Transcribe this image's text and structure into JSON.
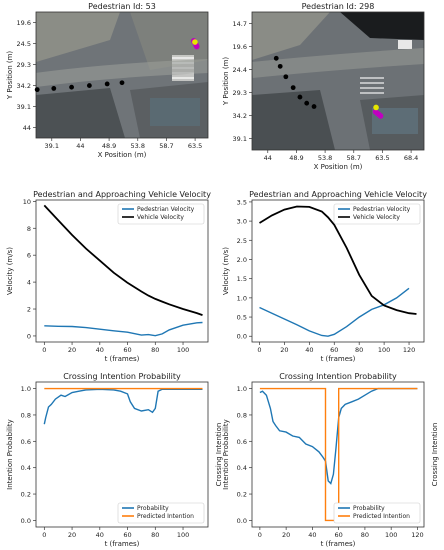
{
  "chart_data": [
    {
      "type": "scatter",
      "title": "Pedestrian Id: 53",
      "xlabel": "X Position (m)",
      "ylabel": "Y Position (m)",
      "xticks": [
        "39.1",
        "44",
        "48.9",
        "53.8",
        "58.7",
        "63.5"
      ],
      "yticks": [
        "19.6",
        "24.5",
        "29.3",
        "34.2",
        "39.1",
        "44"
      ],
      "xlim": [
        36.0,
        65.0
      ],
      "ylim": [
        46.5,
        15.5
      ],
      "background": "aerial-image",
      "series": [
        {
          "role": "vehicle",
          "color": "#000000",
          "x": [
            36.2,
            39.0,
            42.0,
            45.0,
            48.0,
            50.5
          ],
          "y": [
            34.6,
            34.3,
            34.0,
            33.6,
            33.2,
            32.9
          ]
        },
        {
          "role": "pedestrian",
          "color": "#c000c0",
          "x": [
            62.6,
            62.7,
            62.9,
            63.0,
            63.1
          ],
          "y": [
            22.6,
            22.9,
            23.3,
            23.7,
            24.0
          ]
        },
        {
          "role": "pedestrian-current",
          "color": "#e6e600",
          "x": [
            62.8
          ],
          "y": [
            22.9
          ]
        }
      ]
    },
    {
      "type": "scatter",
      "title": "Pedestrian Id: 298",
      "xlabel": "X Position (m)",
      "ylabel": "Y Position (m)",
      "xticks": [
        "44",
        "48.9",
        "53.8",
        "58.7",
        "63.5",
        "68.4"
      ],
      "yticks": [
        "14.7",
        "19.6",
        "24.4",
        "29.3",
        "34.2",
        "39.1"
      ],
      "xlim": [
        40.5,
        71.0
      ],
      "ylim": [
        41.2,
        12.0
      ],
      "background": "aerial-image",
      "series": [
        {
          "role": "vehicle",
          "color": "#000000",
          "x": [
            44.8,
            45.5,
            46.5,
            47.8,
            49.0,
            50.2,
            51.5
          ],
          "y": [
            21.8,
            23.5,
            25.7,
            28.0,
            30.0,
            31.3,
            32.0
          ]
        },
        {
          "role": "pedestrian",
          "color": "#c000c0",
          "x": [
            62.4,
            62.7,
            63.0,
            63.3
          ],
          "y": [
            33.1,
            33.4,
            33.7,
            34.0
          ]
        },
        {
          "role": "pedestrian-current",
          "color": "#e6e600",
          "x": [
            62.5
          ],
          "y": [
            32.2
          ]
        }
      ]
    },
    {
      "type": "line",
      "title": "Pedestrian and Approaching Vehicle Velocity",
      "xlabel": "t (frames)",
      "ylabel": "Velocity (m/s)",
      "xlim": [
        -6,
        118
      ],
      "ylim": [
        -0.45,
        10.1
      ],
      "xticks": [
        0,
        20,
        40,
        60,
        80,
        100
      ],
      "yticks": [
        0,
        2,
        4,
        6,
        8,
        10
      ],
      "legend": "top-right",
      "x": [
        0,
        10,
        20,
        30,
        40,
        50,
        60,
        70,
        75,
        80,
        85,
        90,
        100,
        110,
        114
      ],
      "series": [
        {
          "name": "Pedestrian Velocity",
          "color": "#1f77b4",
          "values": [
            0.75,
            0.72,
            0.7,
            0.62,
            0.5,
            0.38,
            0.28,
            0.06,
            0.1,
            0.02,
            0.15,
            0.45,
            0.8,
            0.98,
            1.0
          ]
        },
        {
          "name": "Vehicle Velocity",
          "color": "#000000",
          "values": [
            9.7,
            8.6,
            7.5,
            6.5,
            5.6,
            4.7,
            3.95,
            3.3,
            3.0,
            2.75,
            2.55,
            2.35,
            2.0,
            1.7,
            1.55
          ]
        }
      ]
    },
    {
      "type": "line",
      "title": "Pedestrian and Approaching Vehicle Velocity",
      "xlabel": "t (frames)",
      "ylabel": "Velocity (m/s)",
      "xlim": [
        -6,
        132
      ],
      "ylim": [
        -0.15,
        3.55
      ],
      "xticks": [
        0,
        20,
        40,
        60,
        80,
        100,
        120
      ],
      "yticks": [
        0.0,
        0.5,
        1.0,
        1.5,
        2.0,
        2.5,
        3.0,
        3.5
      ],
      "legend": "top-right",
      "x": [
        0,
        10,
        20,
        30,
        40,
        50,
        55,
        60,
        70,
        80,
        90,
        100,
        110,
        120,
        126
      ],
      "series": [
        {
          "name": "Pedestrian Velocity",
          "color": "#1f77b4",
          "values": [
            0.75,
            0.6,
            0.45,
            0.3,
            0.14,
            0.02,
            0.0,
            0.05,
            0.25,
            0.5,
            0.7,
            0.82,
            1.0,
            1.25,
            null
          ]
        },
        {
          "name": "Vehicle Velocity",
          "color": "#000000",
          "values": [
            2.95,
            3.15,
            3.3,
            3.38,
            3.37,
            3.25,
            3.1,
            2.9,
            2.3,
            1.6,
            1.05,
            0.8,
            0.68,
            0.6,
            0.58
          ]
        }
      ]
    },
    {
      "type": "line",
      "title": "Crossing Intention Probability",
      "xlabel": "t (frames)",
      "ylabel": "Intention Probability",
      "xlim": [
        -6,
        118
      ],
      "ylim": [
        -0.05,
        1.05
      ],
      "xticks": [
        0,
        20,
        40,
        60,
        80,
        100
      ],
      "yticks": [
        0.0,
        0.2,
        0.4,
        0.6,
        0.8,
        1.0
      ],
      "legend": "bottom-right",
      "x": [
        0,
        1,
        3,
        5,
        8,
        12,
        15,
        20,
        25,
        30,
        40,
        50,
        55,
        60,
        62,
        65,
        70,
        75,
        78,
        80,
        82,
        85,
        90,
        100,
        110,
        114
      ],
      "series": [
        {
          "name": "Probability",
          "color": "#1f77b4",
          "values": [
            0.73,
            0.78,
            0.86,
            0.88,
            0.92,
            0.95,
            0.94,
            0.97,
            0.98,
            0.99,
            0.995,
            0.99,
            0.98,
            0.96,
            0.9,
            0.85,
            0.83,
            0.84,
            0.82,
            0.85,
            0.98,
            0.995,
            0.995,
            0.995,
            0.995,
            0.995
          ]
        },
        {
          "name": "Predicted Intention",
          "color": "#ff7f0e",
          "values": [
            1,
            1,
            1,
            1,
            1,
            1,
            1,
            1,
            1,
            1,
            1,
            1,
            1,
            1,
            1,
            1,
            1,
            1,
            1,
            1,
            1,
            1,
            1,
            1,
            1,
            1
          ]
        }
      ]
    },
    {
      "type": "line",
      "title": "Crossing Intention Probability",
      "xlabel": "t (frames)",
      "ylabel": "Intention Probability",
      "side_labels": [
        "Crossing Intention",
        "Crossing Intention"
      ],
      "xlim": [
        -6,
        125
      ],
      "ylim": [
        -0.05,
        1.05
      ],
      "xticks": [
        0,
        20,
        40,
        60,
        80,
        100,
        120
      ],
      "yticks": [
        0.0,
        0.2,
        0.4,
        0.6,
        0.8,
        1.0
      ],
      "legend": "bottom-right",
      "x": [
        0,
        2,
        5,
        8,
        10,
        12,
        15,
        20,
        25,
        30,
        35,
        40,
        45,
        48,
        50,
        52,
        54,
        56,
        58,
        60,
        62,
        65,
        70,
        75,
        80,
        85,
        90,
        100,
        110,
        120
      ],
      "series": [
        {
          "name": "Probability",
          "color": "#1f77b4",
          "values": [
            0.97,
            0.98,
            0.95,
            0.85,
            0.75,
            0.72,
            0.68,
            0.67,
            0.64,
            0.63,
            0.58,
            0.56,
            0.52,
            0.48,
            0.45,
            0.3,
            0.28,
            0.35,
            0.55,
            0.78,
            0.85,
            0.88,
            0.9,
            0.92,
            0.95,
            0.98,
            1.0,
            1.0,
            1.0,
            1.0
          ]
        },
        {
          "name": "Predicted Intention",
          "color": "#ff7f0e",
          "values": [
            1,
            1,
            1,
            1,
            1,
            1,
            1,
            1,
            1,
            1,
            1,
            1,
            1,
            1,
            0,
            0,
            0,
            0,
            0,
            1,
            1,
            1,
            1,
            1,
            1,
            1,
            1,
            1,
            1,
            1
          ]
        }
      ]
    }
  ]
}
